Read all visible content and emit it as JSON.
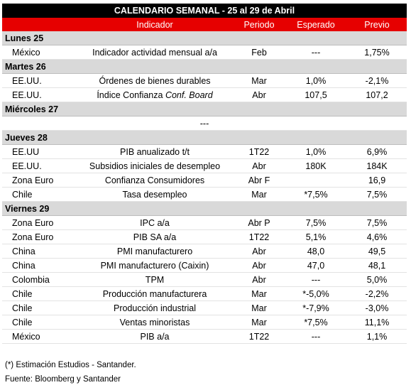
{
  "title": "CALENDARIO SEMANAL - 25 al 29 de Abril",
  "header": {
    "indicator": "Indicador",
    "period": "Periodo",
    "expected": "Esperado",
    "previous": "Previo"
  },
  "sections": [
    {
      "day": "Lunes 25",
      "rows": [
        {
          "country": "México",
          "indicator": "Indicador actividad mensual a/a",
          "period": "Feb",
          "expected": "---",
          "previous": "1,75%"
        }
      ]
    },
    {
      "day": "Martes 26",
      "rows": [
        {
          "country": "EE.UU.",
          "indicator": "Órdenes de bienes durables",
          "period": "Mar",
          "expected": "1,0%",
          "previous": "-2,1%"
        },
        {
          "country": "EE.UU.",
          "indicator": "Índice Confianza",
          "indicator_emphasis": "Conf. Board",
          "period": "Abr",
          "expected": "107,5",
          "previous": "107,2"
        }
      ]
    },
    {
      "day": "Miércoles 27",
      "rows": [
        {
          "note": "---"
        }
      ]
    },
    {
      "day": "Jueves 28",
      "rows": [
        {
          "country": "EE.UU",
          "indicator": "PIB anualizado t/t",
          "period": "1T22",
          "expected": "1,0%",
          "previous": "6,9%"
        },
        {
          "country": "EE.UU.",
          "indicator": "Subsidios iniciales de desempleo",
          "period": "Abr",
          "expected": "180K",
          "previous": "184K"
        },
        {
          "country": "Zona Euro",
          "indicator": "Confianza Consumidores",
          "period": "Abr F",
          "expected": null,
          "previous": "16,9"
        },
        {
          "country": "Chile",
          "indicator": "Tasa desempleo",
          "period": "Mar",
          "expected": "*7,5%",
          "previous": "7,5%"
        }
      ]
    },
    {
      "day": "Viernes 29",
      "rows": [
        {
          "country": "Zona Euro",
          "indicator": "IPC a/a",
          "period": "Abr P",
          "expected": "7,5%",
          "previous": "7,5%"
        },
        {
          "country": "Zona Euro",
          "indicator": "PIB SA a/a",
          "period": "1T22",
          "expected": "5,1%",
          "previous": "4,6%"
        },
        {
          "country": "China",
          "indicator": "PMI manufacturero",
          "period": "Abr",
          "expected": "48,0",
          "previous": "49,5"
        },
        {
          "country": "China",
          "indicator": "PMI manufacturero (Caixin)",
          "period": "Abr",
          "expected": "47,0",
          "previous": "48,1"
        },
        {
          "country": "Colombia",
          "indicator": "TPM",
          "period": "Abr",
          "expected": "---",
          "previous": "5,0%"
        },
        {
          "country": "Chile",
          "indicator": "Producción manufacturera",
          "period": "Mar",
          "expected": "*-5,0%",
          "previous": "-2,2%"
        },
        {
          "country": "Chile",
          "indicator": "Producción industrial",
          "period": "Mar",
          "expected": "*-7,9%",
          "previous": "-3,0%"
        },
        {
          "country": "Chile",
          "indicator": "Ventas minoristas",
          "period": "Mar",
          "expected": "*7,5%",
          "previous": "11,1%"
        },
        {
          "country": "México",
          "indicator": "PIB a/a",
          "period": "1T22",
          "expected": "---",
          "previous": "1,1%"
        }
      ]
    }
  ],
  "footnotes": [
    "(*) Estimación Estudios - Santander.",
    "Fuente: Bloomberg y Santander"
  ]
}
